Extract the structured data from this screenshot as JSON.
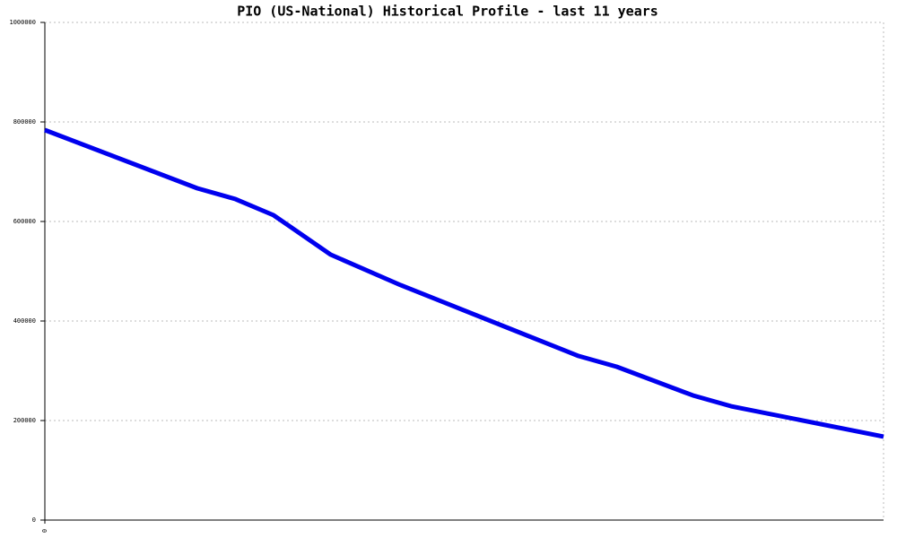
{
  "chart_data": {
    "type": "line",
    "title": "PIO (US-National) Historical Profile - last 11 years",
    "x": [
      0,
      24,
      30,
      36,
      45,
      56,
      73,
      84,
      90,
      102,
      108,
      132
    ],
    "series": [
      {
        "name": "PIO",
        "color": "#0000ee",
        "values": [
          783800,
          666700,
          645000,
          612600,
          533300,
          472100,
          385600,
          329700,
          308100,
          250500,
          228800,
          167600
        ]
      }
    ],
    "xlim": [
      0,
      132
    ],
    "xticks": [
      0
    ],
    "ylim": [
      0,
      1000000
    ],
    "yticks": [
      0,
      200000,
      400000,
      600000,
      800000,
      1000000
    ],
    "grid": true
  }
}
